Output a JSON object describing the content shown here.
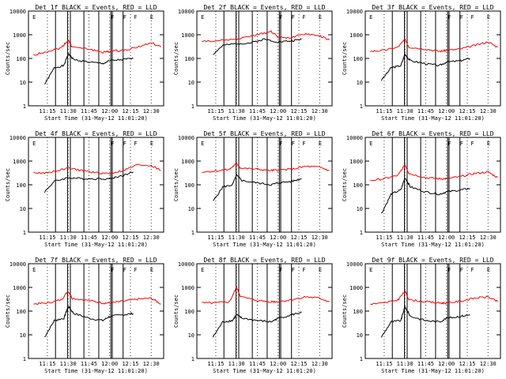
{
  "figure": {
    "y_ticks": [
      "1",
      "10",
      "100",
      "1000",
      "10000"
    ],
    "x_ticks": [
      "11:15",
      "11:30",
      "11:45",
      "12:00",
      "12:15",
      "12:30"
    ],
    "flag_letters": [
      "E",
      "F",
      "F",
      "F",
      "E"
    ]
  },
  "chart_data": [
    {
      "type": "line",
      "title": "Det 1f BLACK = Events, RED = LLD",
      "xlabel": "Start Time (31-May-12 11:01:20)",
      "ylabel": "Counts/sec",
      "y_scale": "log",
      "ylim": [
        1,
        10000
      ],
      "xlim": [
        "11:01:20",
        "12:39:00"
      ],
      "grid": "dotted",
      "series": [
        {
          "color": "#000000",
          "x": [
            "11:13",
            "11:20",
            "11:27",
            "11:30",
            "11:34",
            "11:45",
            "11:55",
            "12:00",
            "12:10",
            "12:17"
          ],
          "values": [
            8,
            40,
            50,
            160,
            90,
            70,
            60,
            80,
            90,
            100
          ]
        },
        {
          "color": "#ff0000",
          "x": [
            "11:05",
            "11:15",
            "11:25",
            "11:30",
            "11:33",
            "11:45",
            "11:55",
            "12:00",
            "12:10",
            "12:20",
            "12:30",
            "12:37"
          ],
          "values": [
            140,
            200,
            280,
            600,
            300,
            250,
            180,
            200,
            220,
            300,
            450,
            300
          ]
        }
      ]
    },
    {
      "type": "line",
      "title": "Det 2f BLACK = Events, RED = LLD",
      "xlabel": "Start Time (31-May-12 11:01:20)",
      "ylabel": "Counts/sec",
      "y_scale": "log",
      "ylim": [
        1,
        10000
      ],
      "xlim": [
        "11:01:20",
        "12:39:00"
      ],
      "grid": "dotted",
      "series": [
        {
          "color": "#000000",
          "x": [
            "11:13",
            "11:20",
            "11:30",
            "11:40",
            "11:50",
            "12:00",
            "12:10",
            "12:17"
          ],
          "values": [
            150,
            350,
            420,
            450,
            650,
            500,
            550,
            650
          ]
        },
        {
          "color": "#ff0000",
          "x": [
            "11:05",
            "11:15",
            "11:30",
            "11:45",
            "11:55",
            "12:00",
            "12:10",
            "12:20",
            "12:30",
            "12:37"
          ],
          "values": [
            550,
            550,
            650,
            1000,
            1400,
            800,
            750,
            1100,
            900,
            600
          ]
        }
      ]
    },
    {
      "type": "line",
      "title": "Det 3f BLACK = Events, RED = LLD",
      "xlabel": "Start Time (31-May-12 11:01:20)",
      "ylabel": "Counts/sec",
      "y_scale": "log",
      "ylim": [
        1,
        10000
      ],
      "xlim": [
        "11:01:20",
        "12:39:00"
      ],
      "grid": "dotted",
      "series": [
        {
          "color": "#000000",
          "x": [
            "11:13",
            "11:20",
            "11:27",
            "11:30",
            "11:34",
            "11:45",
            "11:55",
            "12:00",
            "12:10",
            "12:17"
          ],
          "values": [
            12,
            40,
            50,
            150,
            80,
            60,
            50,
            70,
            80,
            100
          ]
        },
        {
          "color": "#ff0000",
          "x": [
            "11:05",
            "11:15",
            "11:25",
            "11:30",
            "11:33",
            "11:45",
            "11:55",
            "12:00",
            "12:10",
            "12:20",
            "12:30",
            "12:37"
          ],
          "values": [
            200,
            220,
            300,
            650,
            300,
            250,
            200,
            220,
            250,
            350,
            500,
            300
          ]
        }
      ]
    },
    {
      "type": "line",
      "title": "Det 4f BLACK = Events, RED = LLD",
      "xlabel": "Start Time (31-May-12 11:01:20)",
      "ylabel": "Counts/sec",
      "y_scale": "log",
      "ylim": [
        1,
        10000
      ],
      "xlim": [
        "11:01:20",
        "12:39:00"
      ],
      "grid": "dotted",
      "series": [
        {
          "color": "#000000",
          "x": [
            "11:13",
            "11:20",
            "11:30",
            "11:40",
            "11:50",
            "12:00",
            "12:10",
            "12:17"
          ],
          "values": [
            50,
            140,
            200,
            180,
            180,
            180,
            250,
            350
          ]
        },
        {
          "color": "#ff0000",
          "x": [
            "11:05",
            "11:15",
            "11:30",
            "11:40",
            "11:50",
            "12:00",
            "12:10",
            "12:20",
            "12:30",
            "12:37"
          ],
          "values": [
            320,
            320,
            500,
            400,
            320,
            300,
            400,
            700,
            650,
            400
          ]
        }
      ]
    },
    {
      "type": "line",
      "title": "Det 5f BLACK = Events, RED = LLD",
      "xlabel": "Start Time (31-May-12 11:01:20)",
      "ylabel": "Counts/sec",
      "y_scale": "log",
      "ylim": [
        1,
        10000
      ],
      "xlim": [
        "11:01:20",
        "12:39:00"
      ],
      "grid": "dotted",
      "series": [
        {
          "color": "#000000",
          "x": [
            "11:13",
            "11:20",
            "11:27",
            "11:30",
            "11:34",
            "11:45",
            "11:55",
            "12:00",
            "12:10",
            "12:17"
          ],
          "values": [
            20,
            80,
            100,
            250,
            150,
            120,
            100,
            120,
            140,
            180
          ]
        },
        {
          "color": "#ff0000",
          "x": [
            "11:05",
            "11:15",
            "11:25",
            "11:30",
            "11:33",
            "11:45",
            "11:55",
            "12:00",
            "12:10",
            "12:20",
            "12:30",
            "12:37"
          ],
          "values": [
            350,
            380,
            450,
            800,
            500,
            450,
            400,
            420,
            450,
            600,
            550,
            400
          ]
        }
      ]
    },
    {
      "type": "line",
      "title": "Det 6f BLACK = Events, RED = LLD",
      "xlabel": "Start Time (31-May-12 11:01:20)",
      "ylabel": "Counts/sec",
      "y_scale": "log",
      "ylim": [
        1,
        10000
      ],
      "xlim": [
        "11:01:20",
        "12:39:00"
      ],
      "grid": "dotted",
      "series": [
        {
          "color": "#000000",
          "x": [
            "11:13",
            "11:20",
            "11:27",
            "11:30",
            "11:34",
            "11:45",
            "11:55",
            "12:00",
            "12:10",
            "12:17"
          ],
          "values": [
            6,
            40,
            60,
            200,
            80,
            50,
            40,
            50,
            60,
            70
          ]
        },
        {
          "color": "#ff0000",
          "x": [
            "11:05",
            "11:15",
            "11:25",
            "11:30",
            "11:33",
            "11:45",
            "11:55",
            "12:00",
            "12:10",
            "12:20",
            "12:30",
            "12:37"
          ],
          "values": [
            150,
            180,
            250,
            700,
            300,
            200,
            180,
            180,
            220,
            300,
            350,
            200
          ]
        }
      ]
    },
    {
      "type": "line",
      "title": "Det 7f BLACK = Events, RED = LLD",
      "xlabel": "Start Time (31-May-12 11:01:20)",
      "ylabel": "Counts/sec",
      "y_scale": "log",
      "ylim": [
        1,
        10000
      ],
      "xlim": [
        "11:01:20",
        "12:39:00"
      ],
      "grid": "dotted",
      "series": [
        {
          "color": "#000000",
          "x": [
            "11:13",
            "11:20",
            "11:27",
            "11:30",
            "11:34",
            "11:45",
            "11:55",
            "12:00",
            "12:10",
            "12:17"
          ],
          "values": [
            8,
            40,
            50,
            160,
            80,
            50,
            40,
            60,
            70,
            80
          ]
        },
        {
          "color": "#ff0000",
          "x": [
            "11:05",
            "11:15",
            "11:25",
            "11:30",
            "11:33",
            "11:45",
            "11:55",
            "12:00",
            "12:10",
            "12:20",
            "12:30",
            "12:37"
          ],
          "values": [
            200,
            220,
            300,
            700,
            350,
            280,
            220,
            220,
            260,
            320,
            350,
            200
          ]
        }
      ]
    },
    {
      "type": "line",
      "title": "Det 8f BLACK = Events, RED = LLD",
      "xlabel": "Start Time (31-May-12 11:01:20)",
      "ylabel": "Counts/sec",
      "y_scale": "log",
      "ylim": [
        1,
        10000
      ],
      "xlim": [
        "11:01:20",
        "12:39:00"
      ],
      "grid": "dotted",
      "series": [
        {
          "color": "#000000",
          "x": [
            "11:13",
            "11:20",
            "11:27",
            "11:30",
            "11:34",
            "11:45",
            "11:55",
            "12:00",
            "12:10",
            "12:17"
          ],
          "values": [
            8,
            35,
            40,
            70,
            50,
            40,
            35,
            50,
            70,
            90
          ]
        },
        {
          "color": "#ff0000",
          "x": [
            "11:05",
            "11:15",
            "11:25",
            "11:30",
            "11:33",
            "11:45",
            "11:55",
            "12:00",
            "12:10",
            "12:20",
            "12:30",
            "12:37"
          ],
          "values": [
            220,
            220,
            250,
            1000,
            400,
            280,
            250,
            250,
            300,
            400,
            350,
            250
          ]
        }
      ]
    },
    {
      "type": "line",
      "title": "Det 9f BLACK = Events, RED = LLD",
      "xlabel": "Start Time (31-May-12 11:01:20)",
      "ylabel": "Counts/sec",
      "y_scale": "log",
      "ylim": [
        1,
        10000
      ],
      "xlim": [
        "11:01:20",
        "12:39:00"
      ],
      "grid": "dotted",
      "series": [
        {
          "color": "#000000",
          "x": [
            "11:13",
            "11:20",
            "11:27",
            "11:30",
            "11:34",
            "11:45",
            "11:55",
            "12:00",
            "12:10",
            "12:17"
          ],
          "values": [
            8,
            35,
            40,
            150,
            60,
            40,
            35,
            50,
            60,
            70
          ]
        },
        {
          "color": "#ff0000",
          "x": [
            "11:05",
            "11:15",
            "11:25",
            "11:30",
            "11:33",
            "11:45",
            "11:55",
            "12:00",
            "12:10",
            "12:20",
            "12:30",
            "12:37"
          ],
          "values": [
            200,
            220,
            300,
            700,
            300,
            250,
            220,
            220,
            260,
            350,
            400,
            250
          ]
        }
      ]
    }
  ]
}
